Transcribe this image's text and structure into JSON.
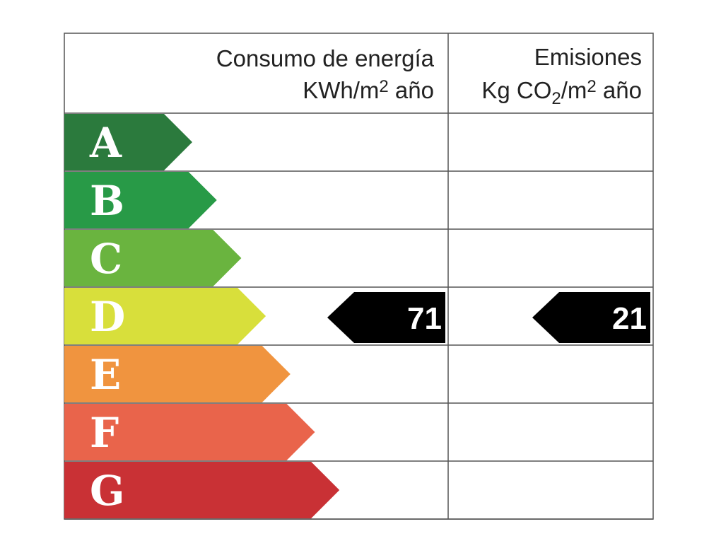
{
  "header": {
    "energy": {
      "title": "Consumo de energía",
      "unit": [
        "KWh/m",
        "2",
        " año"
      ]
    },
    "emissions": {
      "title": "Emisiones",
      "unit": [
        "Kg CO",
        "2",
        "/m",
        "2",
        " año"
      ]
    }
  },
  "classes": [
    {
      "letter": "A",
      "color": "#2b7a3d"
    },
    {
      "letter": "B",
      "color": "#289a47"
    },
    {
      "letter": "C",
      "color": "#6ab43f"
    },
    {
      "letter": "D",
      "color": "#d8df3b",
      "energy": 71,
      "emissions": 21
    },
    {
      "letter": "E",
      "color": "#f0943f"
    },
    {
      "letter": "F",
      "color": "#e9644b"
    },
    {
      "letter": "G",
      "color": "#c93135"
    }
  ]
}
